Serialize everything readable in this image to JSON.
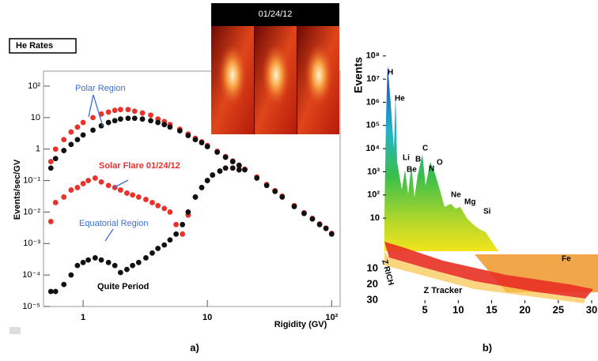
{
  "chart_data": [
    {
      "type": "scatter",
      "title": "He Rates",
      "xlabel": "Rigidity (GV)",
      "ylabel": "Events/sec/GV",
      "caption": "a)",
      "log_x": true,
      "log_y": true,
      "xlim": [
        0.48,
        117
      ],
      "ylim": [
        1e-05,
        300
      ],
      "xticks": [
        1,
        10,
        {
          "value": 100,
          "label": "10²"
        }
      ],
      "yticks": [
        {
          "value": 1e-05,
          "label": "10⁻⁵"
        },
        {
          "value": 0.0001,
          "label": "10⁻⁴"
        },
        {
          "value": 0.001,
          "label": "10⁻³"
        },
        {
          "value": 0.01,
          "label": "10⁻²"
        },
        {
          "value": 0.1,
          "label": "10⁻¹"
        },
        1,
        10,
        {
          "value": 100,
          "label": "10²"
        }
      ],
      "annotations": [
        "Polar Region",
        "Solar Flare 01/24/12",
        "Equatorial Region",
        "Quite Period",
        "01/24/12"
      ],
      "series": [
        {
          "color": "#e8322b",
          "x": [
            0.55,
            0.6,
            0.7,
            0.8,
            0.9,
            1,
            1.2,
            1.4,
            1.6,
            1.8,
            2,
            2.3,
            2.6,
            3,
            3.5,
            4,
            4.5,
            5,
            6,
            7,
            8,
            9,
            10,
            12,
            14,
            16,
            18,
            20,
            25,
            30,
            35,
            40,
            50,
            60,
            70,
            80,
            90,
            100
          ],
          "values": [
            0.4,
            1,
            2,
            3.5,
            5,
            7,
            10,
            13,
            15,
            17,
            18,
            18,
            16,
            14,
            12,
            9,
            7.5,
            6,
            4.3,
            3,
            2.2,
            1.7,
            1.3,
            0.85,
            0.58,
            0.42,
            0.31,
            0.23,
            0.13,
            0.075,
            0.048,
            0.032,
            0.016,
            0.0095,
            0.0063,
            0.0042,
            0.0031,
            0.0021
          ]
        },
        {
          "color": "#111111",
          "x": [
            0.55,
            0.6,
            0.7,
            0.8,
            0.9,
            1,
            1.2,
            1.4,
            1.6,
            1.8,
            2,
            2.3,
            2.6,
            3,
            3.5,
            4,
            4.5,
            5,
            6,
            7,
            8,
            9,
            10,
            12,
            14,
            16,
            18,
            20,
            25,
            30,
            35,
            40,
            50,
            60,
            70,
            80,
            90,
            100
          ],
          "values": [
            0.25,
            0.5,
            0.9,
            1.4,
            2,
            2.8,
            4,
            5.5,
            7,
            8,
            9,
            9.5,
            9.5,
            9,
            8,
            7,
            6,
            5,
            3.8,
            2.7,
            2,
            1.6,
            1.2,
            0.8,
            0.55,
            0.4,
            0.3,
            0.22,
            0.12,
            0.07,
            0.045,
            0.03,
            0.015,
            0.009,
            0.006,
            0.004,
            0.003,
            0.002
          ]
        },
        {
          "color": "#e8322b",
          "x": [
            0.55,
            0.6,
            0.7,
            0.8,
            0.9,
            1,
            1.1,
            1.25,
            1.4,
            1.6,
            1.8,
            2,
            2.25,
            2.5,
            2.8,
            3.2,
            3.6,
            4,
            4.5,
            5,
            5.6,
            6.3,
            7,
            8,
            9,
            10,
            11,
            12.6,
            14,
            16,
            18
          ],
          "values": [
            0.005,
            0.02,
            0.03,
            0.05,
            0.06,
            0.08,
            0.1,
            0.12,
            0.09,
            0.07,
            0.06,
            0.05,
            0.04,
            0.035,
            0.03,
            0.025,
            0.02,
            0.016,
            0.013,
            0.01,
            0.004,
            0.002,
            0.008,
            0.03,
            0.06,
            0.1,
            0.15,
            0.2,
            0.25,
            0.25,
            0.22
          ]
        },
        {
          "color": "#111111",
          "x": [
            0.55,
            0.6,
            0.7,
            0.8,
            0.9,
            1,
            1.1,
            1.25,
            1.4,
            1.6,
            1.8,
            2,
            2.25,
            2.5,
            2.8,
            3.2,
            3.6,
            4,
            4.5,
            5,
            5.6,
            6.3,
            7,
            8,
            9,
            10,
            11,
            12.6,
            14,
            16,
            18
          ],
          "values": [
            3e-05,
            3e-05,
            5e-05,
            0.0001,
            0.0002,
            0.00025,
            0.0003,
            0.00035,
            0.0003,
            0.00025,
            0.0002,
            0.00012,
            0.00015,
            0.0002,
            0.00025,
            0.00035,
            0.0005,
            0.0007,
            0.0009,
            0.0013,
            0.002,
            0.004,
            0.01,
            0.03,
            0.06,
            0.1,
            0.15,
            0.2,
            0.25,
            0.25,
            0.22
          ]
        }
      ]
    },
    {
      "type": "spectrum3d",
      "ylabel": "Events",
      "xlabel": "Z Tracker",
      "zlabel": "Z RICH",
      "caption": "b)",
      "log_y": true,
      "ylim": [
        5,
        200000000
      ],
      "xlim": [
        0,
        30
      ],
      "yticks": [
        {
          "value": 100000000,
          "label": "10⁸"
        },
        {
          "value": 10000000,
          "label": "10⁷"
        },
        {
          "value": 1000000,
          "label": "10⁶"
        },
        {
          "value": 100000,
          "label": "10⁵"
        },
        {
          "value": 10000,
          "label": "10⁴"
        },
        {
          "value": 1000,
          "label": "10³"
        },
        {
          "value": 100,
          "label": "10²"
        },
        10
      ],
      "xticks": [
        5,
        10,
        15,
        20,
        25,
        30
      ],
      "zticks": [
        10,
        20,
        30
      ],
      "elements": [
        "H",
        "He",
        "Li",
        "Be",
        "B",
        "C",
        "N",
        "O",
        "Ne",
        "Mg",
        "Si",
        "Fe"
      ]
    }
  ]
}
